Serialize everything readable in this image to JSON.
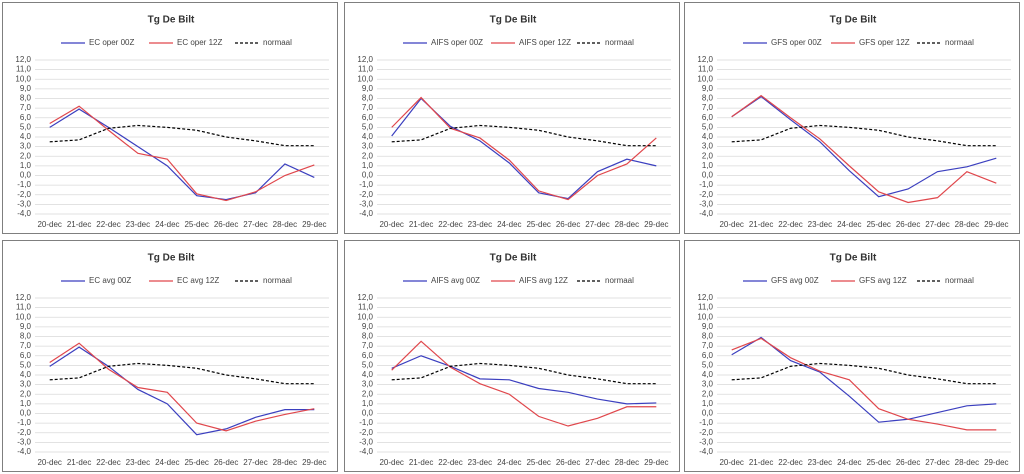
{
  "chart_data": [
    {
      "type": "line",
      "title": "Tg De Bilt",
      "legend": "top",
      "grid": true,
      "categories": [
        "20-dec",
        "21-dec",
        "22-dec",
        "23-dec",
        "24-dec",
        "25-dec",
        "26-dec",
        "27-dec",
        "28-dec",
        "29-dec"
      ],
      "ylim": [
        -4,
        12
      ],
      "yticks": [
        {
          "value": -4,
          "label": "-4,0"
        },
        {
          "value": -3,
          "label": "-3,0"
        },
        {
          "value": -2,
          "label": "-2,0"
        },
        {
          "value": -1,
          "label": "-1,0"
        },
        {
          "value": 0,
          "label": "0,0"
        },
        {
          "value": 1,
          "label": "1,0"
        },
        {
          "value": 2,
          "label": "2,0"
        },
        {
          "value": 3,
          "label": "3,0"
        },
        {
          "value": 4,
          "label": "4,0"
        },
        {
          "value": 5,
          "label": "5,0"
        },
        {
          "value": 6,
          "label": "6,0"
        },
        {
          "value": 7,
          "label": "7,0"
        },
        {
          "value": 8,
          "label": "8,0"
        },
        {
          "value": 9,
          "label": "9,0"
        },
        {
          "value": 10,
          "label": "10,0"
        },
        {
          "value": 11,
          "label": "11,0"
        },
        {
          "value": 12,
          "label": "12,0"
        }
      ],
      "series": [
        {
          "name": "EC oper 00Z",
          "color": "#3b3fbf",
          "style": "solid",
          "values": [
            5.0,
            6.9,
            5.0,
            3.0,
            1.0,
            -2.1,
            -2.5,
            -1.8,
            1.2,
            -0.2
          ]
        },
        {
          "name": "EC oper 12Z",
          "color": "#e0474c",
          "style": "solid",
          "values": [
            5.4,
            7.2,
            4.7,
            2.3,
            1.7,
            -1.9,
            -2.6,
            -1.7,
            0.0,
            1.1
          ]
        },
        {
          "name": "normaal",
          "color": "#000000",
          "style": "dashed",
          "values": [
            3.5,
            3.7,
            4.9,
            5.2,
            5.0,
            4.7,
            4.0,
            3.6,
            3.1,
            3.1
          ]
        }
      ]
    },
    {
      "type": "line",
      "title": "Tg De Bilt",
      "legend": "top",
      "grid": true,
      "categories": [
        "20-dec",
        "21-dec",
        "22-dec",
        "23-dec",
        "24-dec",
        "25-dec",
        "26-dec",
        "27-dec",
        "28-dec",
        "29-dec"
      ],
      "ylim": [
        -4,
        12
      ],
      "yticks": [
        {
          "value": -4,
          "label": "-4,0"
        },
        {
          "value": -3,
          "label": "-3,0"
        },
        {
          "value": -2,
          "label": "-2,0"
        },
        {
          "value": -1,
          "label": "-1,0"
        },
        {
          "value": 0,
          "label": "0,0"
        },
        {
          "value": 1,
          "label": "1,0"
        },
        {
          "value": 2,
          "label": "2,0"
        },
        {
          "value": 3,
          "label": "3,0"
        },
        {
          "value": 4,
          "label": "4,0"
        },
        {
          "value": 5,
          "label": "5,0"
        },
        {
          "value": 6,
          "label": "6,0"
        },
        {
          "value": 7,
          "label": "7,0"
        },
        {
          "value": 8,
          "label": "8,0"
        },
        {
          "value": 9,
          "label": "9,0"
        },
        {
          "value": 10,
          "label": "10,0"
        },
        {
          "value": 11,
          "label": "11,0"
        },
        {
          "value": 12,
          "label": "12,0"
        }
      ],
      "series": [
        {
          "name": "AIFS oper 00Z",
          "color": "#3b3fbf",
          "style": "solid",
          "values": [
            4.1,
            8.0,
            5.1,
            3.6,
            1.3,
            -1.8,
            -2.4,
            0.4,
            1.7,
            1.0
          ]
        },
        {
          "name": "AIFS oper 12Z",
          "color": "#e0474c",
          "style": "solid",
          "values": [
            5.0,
            8.1,
            4.9,
            3.9,
            1.6,
            -1.6,
            -2.5,
            0.0,
            1.2,
            3.9
          ]
        },
        {
          "name": "normaal",
          "color": "#000000",
          "style": "dashed",
          "values": [
            3.5,
            3.7,
            4.9,
            5.2,
            5.0,
            4.7,
            4.0,
            3.6,
            3.1,
            3.1
          ]
        }
      ]
    },
    {
      "type": "line",
      "title": "Tg De Bilt",
      "legend": "top",
      "grid": true,
      "categories": [
        "20-dec",
        "21-dec",
        "22-dec",
        "23-dec",
        "24-dec",
        "25-dec",
        "26-dec",
        "27-dec",
        "28-dec",
        "29-dec"
      ],
      "ylim": [
        -4,
        12
      ],
      "yticks": [
        {
          "value": -4,
          "label": "-4,0"
        },
        {
          "value": -3,
          "label": "-3,0"
        },
        {
          "value": -2,
          "label": "-2,0"
        },
        {
          "value": -1,
          "label": "-1,0"
        },
        {
          "value": 0,
          "label": "0,0"
        },
        {
          "value": 1,
          "label": "1,0"
        },
        {
          "value": 2,
          "label": "2,0"
        },
        {
          "value": 3,
          "label": "3,0"
        },
        {
          "value": 4,
          "label": "4,0"
        },
        {
          "value": 5,
          "label": "5,0"
        },
        {
          "value": 6,
          "label": "6,0"
        },
        {
          "value": 7,
          "label": "7,0"
        },
        {
          "value": 8,
          "label": "8,0"
        },
        {
          "value": 9,
          "label": "9,0"
        },
        {
          "value": 10,
          "label": "10,0"
        },
        {
          "value": 11,
          "label": "11,0"
        },
        {
          "value": 12,
          "label": "12,0"
        }
      ],
      "series": [
        {
          "name": "GFS oper 00Z",
          "color": "#3b3fbf",
          "style": "solid",
          "values": [
            6.1,
            8.2,
            5.8,
            3.5,
            0.5,
            -2.2,
            -1.4,
            0.4,
            0.9,
            1.8
          ]
        },
        {
          "name": "GFS oper 12Z",
          "color": "#e0474c",
          "style": "solid",
          "values": [
            6.1,
            8.3,
            6.0,
            3.8,
            1.0,
            -1.7,
            -2.8,
            -2.3,
            0.4,
            -0.8
          ]
        },
        {
          "name": "normaal",
          "color": "#000000",
          "style": "dashed",
          "values": [
            3.5,
            3.7,
            4.9,
            5.2,
            5.0,
            4.7,
            4.0,
            3.6,
            3.1,
            3.1
          ]
        }
      ]
    },
    {
      "type": "line",
      "title": "Tg De Bilt",
      "legend": "top",
      "grid": true,
      "categories": [
        "20-dec",
        "21-dec",
        "22-dec",
        "23-dec",
        "24-dec",
        "25-dec",
        "26-dec",
        "27-dec",
        "28-dec",
        "29-dec"
      ],
      "ylim": [
        -4,
        12
      ],
      "yticks": [
        {
          "value": -4,
          "label": "-4,0"
        },
        {
          "value": -3,
          "label": "-3,0"
        },
        {
          "value": -2,
          "label": "-2,0"
        },
        {
          "value": -1,
          "label": "-1,0"
        },
        {
          "value": 0,
          "label": "0,0"
        },
        {
          "value": 1,
          "label": "1,0"
        },
        {
          "value": 2,
          "label": "2,0"
        },
        {
          "value": 3,
          "label": "3,0"
        },
        {
          "value": 4,
          "label": "4,0"
        },
        {
          "value": 5,
          "label": "5,0"
        },
        {
          "value": 6,
          "label": "6,0"
        },
        {
          "value": 7,
          "label": "7,0"
        },
        {
          "value": 8,
          "label": "8,0"
        },
        {
          "value": 9,
          "label": "9,0"
        },
        {
          "value": 10,
          "label": "10,0"
        },
        {
          "value": 11,
          "label": "11,0"
        },
        {
          "value": 12,
          "label": "12,0"
        }
      ],
      "series": [
        {
          "name": "EC avg 00Z",
          "color": "#3b3fbf",
          "style": "solid",
          "values": [
            4.9,
            6.9,
            4.9,
            2.5,
            1.0,
            -2.2,
            -1.6,
            -0.4,
            0.4,
            0.4
          ]
        },
        {
          "name": "EC avg 12Z",
          "color": "#e0474c",
          "style": "solid",
          "values": [
            5.3,
            7.3,
            4.6,
            2.7,
            2.2,
            -1.0,
            -1.8,
            -0.8,
            -0.1,
            0.5
          ]
        },
        {
          "name": "normaal",
          "color": "#000000",
          "style": "dashed",
          "values": [
            3.5,
            3.7,
            4.9,
            5.2,
            5.0,
            4.7,
            4.0,
            3.6,
            3.1,
            3.1
          ]
        }
      ]
    },
    {
      "type": "line",
      "title": "Tg De Bilt",
      "legend": "top",
      "grid": true,
      "categories": [
        "20-dec",
        "21-dec",
        "22-dec",
        "23-dec",
        "24-dec",
        "25-dec",
        "26-dec",
        "27-dec",
        "28-dec",
        "29-dec"
      ],
      "ylim": [
        -4,
        12
      ],
      "yticks": [
        {
          "value": -4,
          "label": "-4,0"
        },
        {
          "value": -3,
          "label": "-3,0"
        },
        {
          "value": -2,
          "label": "-2,0"
        },
        {
          "value": -1,
          "label": "-1,0"
        },
        {
          "value": 0,
          "label": "0,0"
        },
        {
          "value": 1,
          "label": "1,0"
        },
        {
          "value": 2,
          "label": "2,0"
        },
        {
          "value": 3,
          "label": "3,0"
        },
        {
          "value": 4,
          "label": "4,0"
        },
        {
          "value": 5,
          "label": "5,0"
        },
        {
          "value": 6,
          "label": "6,0"
        },
        {
          "value": 7,
          "label": "7,0"
        },
        {
          "value": 8,
          "label": "8,0"
        },
        {
          "value": 9,
          "label": "9,0"
        },
        {
          "value": 10,
          "label": "10,0"
        },
        {
          "value": 11,
          "label": "11,0"
        },
        {
          "value": 12,
          "label": "12,0"
        }
      ],
      "series": [
        {
          "name": "AIFS avg 00Z",
          "color": "#3b3fbf",
          "style": "solid",
          "values": [
            4.7,
            6.0,
            4.9,
            3.6,
            3.5,
            2.6,
            2.2,
            1.5,
            1.0,
            1.1
          ]
        },
        {
          "name": "AIFS avg 12Z",
          "color": "#e0474c",
          "style": "solid",
          "values": [
            4.5,
            7.5,
            4.8,
            3.1,
            2.0,
            -0.3,
            -1.3,
            -0.5,
            0.7,
            0.7
          ]
        },
        {
          "name": "normaal",
          "color": "#000000",
          "style": "dashed",
          "values": [
            3.5,
            3.7,
            4.9,
            5.2,
            5.0,
            4.7,
            4.0,
            3.6,
            3.1,
            3.1
          ]
        }
      ]
    },
    {
      "type": "line",
      "title": "Tg De Bilt",
      "legend": "top",
      "grid": true,
      "categories": [
        "20-dec",
        "21-dec",
        "22-dec",
        "23-dec",
        "24-dec",
        "25-dec",
        "26-dec",
        "27-dec",
        "28-dec",
        "29-dec"
      ],
      "ylim": [
        -4,
        12
      ],
      "yticks": [
        {
          "value": -4,
          "label": "-4,0"
        },
        {
          "value": -3,
          "label": "-3,0"
        },
        {
          "value": -2,
          "label": "-2,0"
        },
        {
          "value": -1,
          "label": "-1,0"
        },
        {
          "value": 0,
          "label": "0,0"
        },
        {
          "value": 1,
          "label": "1,0"
        },
        {
          "value": 2,
          "label": "2,0"
        },
        {
          "value": 3,
          "label": "3,0"
        },
        {
          "value": 4,
          "label": "4,0"
        },
        {
          "value": 5,
          "label": "5,0"
        },
        {
          "value": 6,
          "label": "6,0"
        },
        {
          "value": 7,
          "label": "7,0"
        },
        {
          "value": 8,
          "label": "8,0"
        },
        {
          "value": 9,
          "label": "9,0"
        },
        {
          "value": 10,
          "label": "10,0"
        },
        {
          "value": 11,
          "label": "11,0"
        },
        {
          "value": 12,
          "label": "12,0"
        }
      ],
      "series": [
        {
          "name": "GFS avg 00Z",
          "color": "#3b3fbf",
          "style": "solid",
          "values": [
            6.1,
            7.9,
            5.5,
            4.3,
            1.8,
            -0.9,
            -0.6,
            0.1,
            0.8,
            1.0
          ]
        },
        {
          "name": "GFS avg 12Z",
          "color": "#e0474c",
          "style": "solid",
          "values": [
            6.6,
            7.8,
            5.8,
            4.4,
            3.5,
            0.5,
            -0.6,
            -1.1,
            -1.7,
            -1.7
          ]
        },
        {
          "name": "normaal",
          "color": "#000000",
          "style": "dashed",
          "values": [
            3.5,
            3.7,
            4.9,
            5.2,
            5.0,
            4.7,
            4.0,
            3.6,
            3.1,
            3.1
          ]
        }
      ]
    }
  ]
}
